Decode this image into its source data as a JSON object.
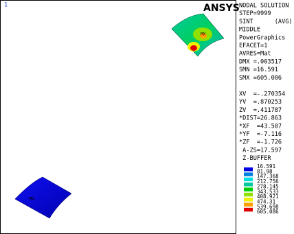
{
  "window_number": "1",
  "logo": "ANSYS",
  "info_lines": [
    "NODAL SOLUTION",
    "STEP=9999",
    "SINT      (AVG)",
    "MIDDLE",
    "PowerGraphics",
    "EFACET=1",
    "AVRES=Mat",
    "DMX =.003517",
    "SMN =16.591",
    "SMX =605.086"
  ],
  "view_lines": [
    "XV  =-.270354",
    "YV  =.870253",
    "ZV  =.411787",
    "*DIST=26.863",
    "*XF  =43.507",
    "*YF  =-7.116",
    "*ZF  =-1.726",
    " A-ZS=17.597",
    " Z-BUFFER"
  ],
  "legend": {
    "labels": [
      "16.591",
      "81.98",
      "147.368",
      "212.756",
      "278.145",
      "343.533",
      "408.921",
      "474.31",
      "539.698",
      "605.086"
    ],
    "colors": [
      "#0000e0",
      "#0080e0",
      "#00e0e0",
      "#00c8a0",
      "#00d000",
      "#90e000",
      "#f0f000",
      "#ffa000",
      "#e00000"
    ]
  },
  "model_labels": [
    "MX",
    "MN"
  ]
}
